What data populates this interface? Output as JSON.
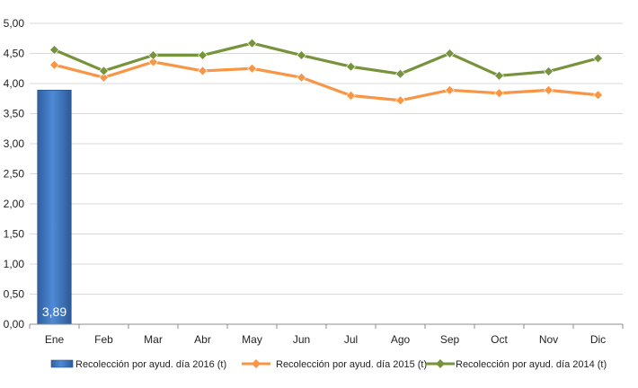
{
  "chart_data": {
    "type": "bar",
    "categories": [
      "Ene",
      "Feb",
      "Mar",
      "Abr",
      "May",
      "Jun",
      "Jul",
      "Ago",
      "Sep",
      "Oct",
      "Nov",
      "Dic"
    ],
    "ylim": [
      0,
      5
    ],
    "ytick_values": [
      0,
      0.5,
      1,
      1.5,
      2,
      2.5,
      3,
      3.5,
      4,
      4.5,
      5
    ],
    "ytick_labels": [
      "0,00",
      "0,50",
      "1,00",
      "1,50",
      "2,00",
      "2,50",
      "3,00",
      "3,50",
      "4,00",
      "4,50",
      "5,00"
    ],
    "grid": true,
    "legend_position": "bottom",
    "series": [
      {
        "name": "Recolección por ayud. día 2016 (t)",
        "type": "bar",
        "color": "#3f77c8",
        "values": [
          3.89,
          null,
          null,
          null,
          null,
          null,
          null,
          null,
          null,
          null,
          null,
          null
        ],
        "data_labels": [
          "3,89",
          null,
          null,
          null,
          null,
          null,
          null,
          null,
          null,
          null,
          null,
          null
        ]
      },
      {
        "name": "Recolección por ayud. día 2015 (t)",
        "type": "line",
        "color": "#f79646",
        "values": [
          4.31,
          4.1,
          4.36,
          4.21,
          4.25,
          4.1,
          3.8,
          3.72,
          3.89,
          3.84,
          3.89,
          3.81
        ]
      },
      {
        "name": "Recolección por ayud. día 2014 (t)",
        "type": "line",
        "color": "#77933c",
        "values": [
          4.56,
          4.21,
          4.47,
          4.47,
          4.67,
          4.47,
          4.28,
          4.16,
          4.5,
          4.13,
          4.2,
          4.42
        ]
      }
    ]
  }
}
